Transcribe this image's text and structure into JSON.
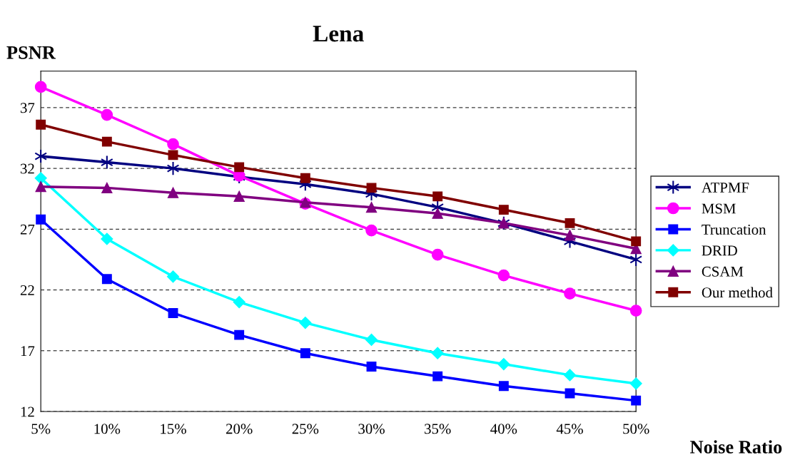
{
  "chart_data": {
    "type": "line",
    "title": "Lena",
    "xlabel": "Noise Ratio",
    "ylabel": "PSNR",
    "categories": [
      "5%",
      "10%",
      "15%",
      "20%",
      "25%",
      "30%",
      "35%",
      "40%",
      "45%",
      "50%"
    ],
    "series": [
      {
        "name": "ATPMF",
        "color": "#000080",
        "marker": "cross",
        "values": [
          33.0,
          32.5,
          32.0,
          31.3,
          30.7,
          29.9,
          28.8,
          27.5,
          26.0,
          24.5
        ]
      },
      {
        "name": "MSM",
        "color": "#ff00ff",
        "marker": "circle",
        "values": [
          38.7,
          36.4,
          34.0,
          31.4,
          29.1,
          26.9,
          24.9,
          23.2,
          21.7,
          20.3
        ]
      },
      {
        "name": "Truncation",
        "color": "#0000ff",
        "marker": "square",
        "values": [
          27.8,
          22.9,
          20.1,
          18.3,
          16.8,
          15.7,
          14.9,
          14.1,
          13.5,
          12.9
        ]
      },
      {
        "name": "DRID",
        "color": "#00ffff",
        "marker": "diamond",
        "values": [
          31.2,
          26.2,
          23.1,
          21.0,
          19.3,
          17.9,
          16.8,
          15.9,
          15.0,
          14.3
        ]
      },
      {
        "name": "CSAM",
        "color": "#800080",
        "marker": "triangle",
        "values": [
          30.5,
          30.4,
          30.0,
          29.7,
          29.2,
          28.8,
          28.3,
          27.5,
          26.5,
          25.4
        ]
      },
      {
        "name": "Our method",
        "color": "#800000",
        "marker": "square",
        "values": [
          35.6,
          34.2,
          33.1,
          32.1,
          31.2,
          30.4,
          29.7,
          28.6,
          27.5,
          26.0
        ]
      }
    ],
    "ylim": [
      12,
      40
    ],
    "yticks": [
      12,
      17,
      22,
      27,
      32,
      37
    ],
    "grid": "y",
    "legend": "right",
    "line_style": "solid"
  }
}
